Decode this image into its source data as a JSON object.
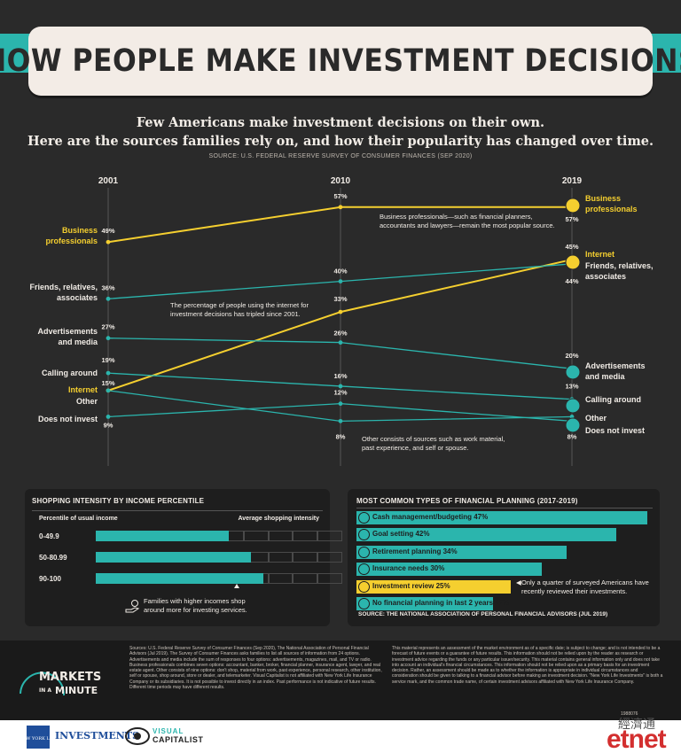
{
  "title": "HOW PEOPLE MAKE INVESTMENT DECISIONS",
  "subtitle_line1": "Few Americans make investment decisions on their own.",
  "subtitle_line2": "Here are the sources families rely on, and how their popularity has changed over time.",
  "source_top": "SOURCE: U.S. FEDERAL RESERVE SURVEY OF CONSUMER FINANCES (SEP 2020)",
  "annotations": {
    "business": "Business professionals—such as financial planners, accountants and lawyers—remain the most popular source.",
    "internet": "The percentage of people using the internet for investment decisions has tripled since 2001.",
    "other": "Other consists of sources such as work material, past experience, and self or spouse."
  },
  "colors": {
    "accent_teal": "#2bb5ad",
    "accent_yellow": "#f5cf2f",
    "background": "#2a2a2a",
    "text_light": "#f1ece6"
  },
  "chart_data": {
    "type": "line",
    "x": [
      "2001",
      "2010",
      "2019"
    ],
    "series": [
      {
        "name": "Business professionals",
        "values": [
          49,
          57,
          57
        ],
        "color": "#f5cf2f",
        "labels": [
          "49%",
          "57%",
          "57%"
        ],
        "left_label": [
          "Business",
          "professionals"
        ],
        "right_label": [
          "Business",
          "professionals"
        ]
      },
      {
        "name": "Internet",
        "values": [
          15,
          33,
          45
        ],
        "color": "#f5cf2f",
        "labels": [
          "",
          "33%",
          "45%"
        ],
        "left_label": [
          "Internet"
        ],
        "right_label": [
          "Internet"
        ]
      },
      {
        "name": "Friends, relatives, associates",
        "values": [
          36,
          40,
          44
        ],
        "color": "#2bb5ad",
        "labels": [
          "36%",
          "40%",
          "44%"
        ],
        "left_label": [
          "Friends, relatives,",
          "associates"
        ],
        "right_label": [
          "Friends, relatives,",
          "associates"
        ]
      },
      {
        "name": "Advertisements and media",
        "values": [
          27,
          26,
          20
        ],
        "color": "#2bb5ad",
        "labels": [
          "27%",
          "26%",
          "20%"
        ],
        "left_label": [
          "Advertisements",
          "and media"
        ],
        "right_label": [
          "Advertisements",
          "and media"
        ]
      },
      {
        "name": "Calling around",
        "values": [
          19,
          16,
          13
        ],
        "color": "#2bb5ad",
        "labels": [
          "19%",
          "16%",
          "13%"
        ],
        "left_label": [
          "Calling around"
        ],
        "right_label": [
          "Calling around"
        ]
      },
      {
        "name": "Other",
        "values": [
          15,
          8,
          9
        ],
        "color": "#2bb5ad",
        "labels": [
          "15%",
          "8%",
          "9%"
        ],
        "left_label": [
          "Other"
        ],
        "right_label": [
          "Other"
        ]
      },
      {
        "name": "Does not invest",
        "values": [
          9,
          12,
          8
        ],
        "color": "#2bb5ad",
        "labels": [
          "9%",
          "12%",
          "8%"
        ],
        "left_label": [
          "Does not invest"
        ],
        "right_label": [
          "Does not invest"
        ]
      }
    ]
  },
  "income_panel": {
    "title": "SHOPPING INTENSITY BY INCOME PERCENTILE",
    "col_left": "Percentile of usual income",
    "col_right": "Average shopping intensity",
    "rows": [
      {
        "label": "0-49.9",
        "fraction": 0.54
      },
      {
        "label": "50-80.99",
        "fraction": 0.63
      },
      {
        "label": "90-100",
        "fraction": 0.68
      }
    ],
    "note": "Families with higher incomes shop around more for investing services."
  },
  "planning_panel": {
    "title": "MOST COMMON TYPES OF FINANCIAL PLANNING (2017-2019)",
    "rows": [
      {
        "label": "Cash management/budgeting",
        "value": "47%",
        "pct": 47,
        "highlight": false
      },
      {
        "label": "Goal setting",
        "value": "42%",
        "pct": 42,
        "highlight": false
      },
      {
        "label": "Retirement planning",
        "value": "34%",
        "pct": 34,
        "highlight": false
      },
      {
        "label": "Insurance needs",
        "value": "30%",
        "pct": 30,
        "highlight": false
      },
      {
        "label": "Investment review",
        "value": "25%",
        "pct": 25,
        "highlight": true
      },
      {
        "label": "No financial planning in last 2 years",
        "value": "22%",
        "pct": 22,
        "highlight": false
      }
    ],
    "note": "Only a quarter of surveyed Americans have recently reviewed their investments.",
    "source": "SOURCE: THE NATIONAL ASSOCIATION OF PERSONAL FINANCIAL ADVISORS (JUL 2019)"
  },
  "footer": {
    "brand_top": "MARKETS",
    "brand_in": "IN A",
    "brand_bottom": "MINUTE",
    "col1": "Sources: U.S. Federal Reserve Survey of Consumer Finances (Sep 2020), The National Association of Personal Financial Advisors (Jul 2019). The Survey of Consumer Finances asks families to list all sources of information from 24 options. Advertisements and media include the sum of responses to four options: advertisements, magazines, mail, and TV or radio. Business professionals combines seven options: accountant, banker, broker, financial planner, insurance agent, lawyer, and real estate agent. Other consists of nine options: don't shop, material from work, past experience, personal research, other institution, self or spouse, shop around, store or dealer, and telemarketer. Visual Capitalist is not affiliated with New York Life Insurance Company or its subsidiaries. It is not possible to invest directly in an index. Past performance is not indicative of future results. Different time periods may have different results.",
    "col2": "This material represents an assessment of the market environment as of a specific date; is subject to change; and is not intended to be a forecast of future events or a guarantee of future results. This information should not be relied upon by the reader as research or investment advice regarding the funds or any particular issuer/security. This material contains general information only and does not take into account an individual's financial circumstances. This information should not be relied upon as a primary basis for an investment decision. Rather, an assessment should be made as to whether the information is appropriate in individual circumstances and consideration should be given to talking to a financial advisor before making an investment decision. \"New York Life Investments\" is both a service mark, and the common trade name, of certain investment advisors affiliated with New York Life Insurance Company.",
    "code": "1988076"
  },
  "logos": {
    "nyl": "NEW YORK LIFE",
    "investments": "INVESTMENTS",
    "vc_top": "VISUAL",
    "vc_bottom": "CAPITALIST",
    "watermark_cn": "經濟通",
    "watermark": "etnet"
  }
}
